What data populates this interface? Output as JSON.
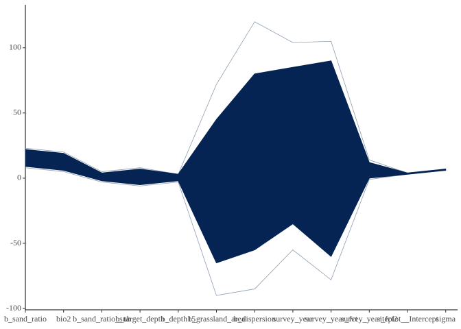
{
  "chart_data": {
    "type": "parallel",
    "categories": [
      "b_sand_ratio",
      "bio2",
      "b_sand_ratio_sub",
      "b_target_depth",
      "b_depth15",
      "b_grassland_area",
      "b_dispersion",
      "survey_year",
      "survey_year_fct",
      "survey_year_fct2",
      "siteplot__Intercept",
      "sigma"
    ],
    "band": {
      "color": "#052453",
      "upper": [
        22,
        19,
        4,
        7,
        3,
        45,
        80,
        85,
        90,
        12,
        4,
        7
      ],
      "lower": [
        9,
        6,
        -2,
        -5,
        -2,
        -65,
        -55,
        -35,
        -60,
        0,
        3,
        6
      ]
    },
    "series": [
      {
        "color": "#8d9db0",
        "values": [
          23,
          20,
          5,
          8,
          3,
          72,
          120,
          104,
          105,
          14,
          4,
          7
        ]
      },
      {
        "color": "#8d9db0",
        "values": [
          8,
          5,
          -3,
          -6,
          -3,
          -90,
          -85,
          -55,
          -78,
          -1,
          3,
          6
        ]
      }
    ],
    "ylim": [
      -101,
      133
    ],
    "yticks": [
      -100,
      -50,
      0,
      50,
      100
    ]
  }
}
